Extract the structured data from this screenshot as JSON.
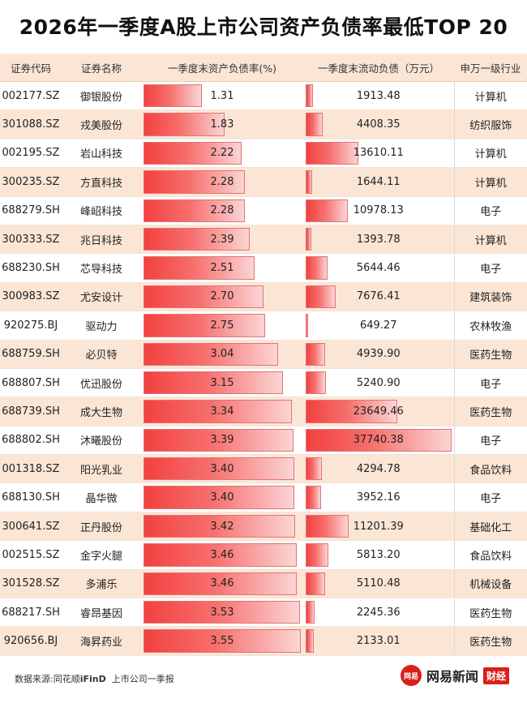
{
  "title": "2026年一季度A股上市公司资产负债率最低TOP 20",
  "columns": [
    "证券代码",
    "证券名称",
    "一季度末资产负债率(%)",
    "一季度末流动负债（万元）",
    "申万一级行业"
  ],
  "rows": [
    {
      "code": "002177.SZ",
      "name": "御银股份",
      "debt_ratio": "1.31",
      "current_liab": "1913.48",
      "industry": "计算机"
    },
    {
      "code": "301088.SZ",
      "name": "戎美股份",
      "debt_ratio": "1.83",
      "current_liab": "4408.35",
      "industry": "纺织服饰"
    },
    {
      "code": "002195.SZ",
      "name": "岩山科技",
      "debt_ratio": "2.22",
      "current_liab": "13610.11",
      "industry": "计算机"
    },
    {
      "code": "300235.SZ",
      "name": "方直科技",
      "debt_ratio": "2.28",
      "current_liab": "1644.11",
      "industry": "计算机"
    },
    {
      "code": "688279.SH",
      "name": "峰岹科技",
      "debt_ratio": "2.28",
      "current_liab": "10978.13",
      "industry": "电子"
    },
    {
      "code": "300333.SZ",
      "name": "兆日科技",
      "debt_ratio": "2.39",
      "current_liab": "1393.78",
      "industry": "计算机"
    },
    {
      "code": "688230.SH",
      "name": "芯导科技",
      "debt_ratio": "2.51",
      "current_liab": "5644.46",
      "industry": "电子"
    },
    {
      "code": "300983.SZ",
      "name": "尤安设计",
      "debt_ratio": "2.70",
      "current_liab": "7676.41",
      "industry": "建筑装饰"
    },
    {
      "code": "920275.BJ",
      "name": "驱动力",
      "debt_ratio": "2.75",
      "current_liab": "649.27",
      "industry": "农林牧渔"
    },
    {
      "code": "688759.SH",
      "name": "必贝特",
      "debt_ratio": "3.04",
      "current_liab": "4939.90",
      "industry": "医药生物"
    },
    {
      "code": "688807.SH",
      "name": "优迅股份",
      "debt_ratio": "3.15",
      "current_liab": "5240.90",
      "industry": "电子"
    },
    {
      "code": "688739.SH",
      "name": "成大生物",
      "debt_ratio": "3.34",
      "current_liab": "23649.46",
      "industry": "医药生物"
    },
    {
      "code": "688802.SH",
      "name": "沐曦股份",
      "debt_ratio": "3.39",
      "current_liab": "37740.38",
      "industry": "电子"
    },
    {
      "code": "001318.SZ",
      "name": "阳光乳业",
      "debt_ratio": "3.40",
      "current_liab": "4294.78",
      "industry": "食品饮料"
    },
    {
      "code": "688130.SH",
      "name": "晶华微",
      "debt_ratio": "3.40",
      "current_liab": "3952.16",
      "industry": "电子"
    },
    {
      "code": "300641.SZ",
      "name": "正丹股份",
      "debt_ratio": "3.42",
      "current_liab": "11201.39",
      "industry": "基础化工"
    },
    {
      "code": "002515.SZ",
      "name": "金字火腿",
      "debt_ratio": "3.46",
      "current_liab": "5813.20",
      "industry": "食品饮料"
    },
    {
      "code": "301528.SZ",
      "name": "多浦乐",
      "debt_ratio": "3.46",
      "current_liab": "5110.48",
      "industry": "机械设备"
    },
    {
      "code": "688217.SH",
      "name": "睿昂基因",
      "debt_ratio": "3.53",
      "current_liab": "2245.36",
      "industry": "医药生物"
    },
    {
      "code": "920656.BJ",
      "name": "海昇药业",
      "debt_ratio": "3.55",
      "current_liab": "2133.01",
      "industry": "医药生物"
    }
  ],
  "bar_scale": {
    "debt_ratio_max": 3.55,
    "current_liab_max": 37740.38
  },
  "footer": {
    "source_label": "数据来源:同花顺",
    "source_brand": "iFinD",
    "source_tail": "上市公司一季报"
  },
  "brand": {
    "logo_text": "网易",
    "name": "网易新闻",
    "sub": "财经"
  },
  "colors": {
    "bar": "#f2413f",
    "header_bg": "#fbe6d6",
    "brand_red": "#d9201a"
  }
}
